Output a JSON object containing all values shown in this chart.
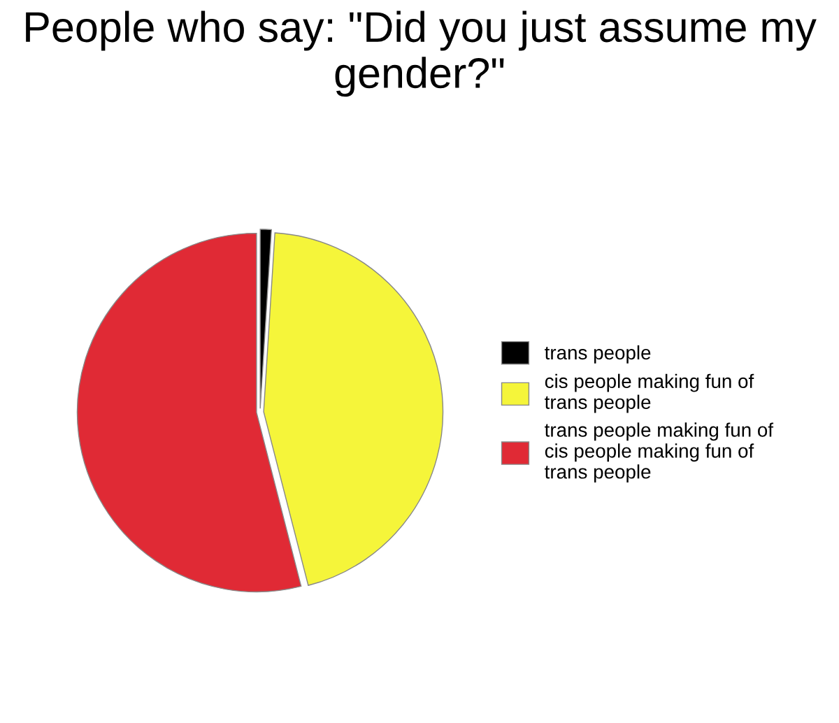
{
  "chart_data": {
    "type": "pie",
    "title": "People who say: \"Did you just assume my gender?\"",
    "categories": [
      "trans people",
      "cis people making fun of\ntrans people",
      "trans people making fun of\ncis people making fun of\ntrans people"
    ],
    "values": [
      1,
      45,
      54
    ],
    "colors": [
      "#000000",
      "#f5f53a",
      "#e02a35"
    ],
    "legend": "right"
  }
}
